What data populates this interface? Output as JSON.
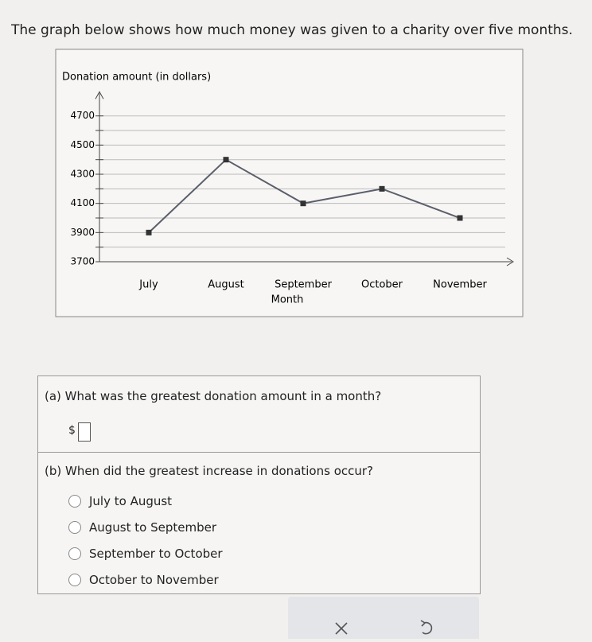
{
  "header": {
    "title": "The graph below shows how much money was given to a charity over five months."
  },
  "chart_data": {
    "type": "line",
    "y_label": "Donation amount (in dollars)",
    "x_label": "Month",
    "categories": [
      "July",
      "August",
      "September",
      "October",
      "November"
    ],
    "series": [
      {
        "color": "#5a5f6b",
        "values": [
          3900,
          4400,
          4100,
          4200,
          4000
        ]
      }
    ],
    "ylim": [
      3700,
      4800
    ],
    "yticks": [
      3700,
      3900,
      4100,
      4300,
      4500,
      4700
    ],
    "minor_yticks": [
      3800,
      4000,
      4200,
      4400,
      4600
    ],
    "grid": true
  },
  "questions": [
    {
      "label": "(a) What was the greatest donation amount in a month?",
      "prefix": "$"
    },
    {
      "label": "(b) When did the greatest increase in donations occur?",
      "options": [
        "July to August",
        "August to September",
        "September to October",
        "October to November"
      ]
    }
  ]
}
